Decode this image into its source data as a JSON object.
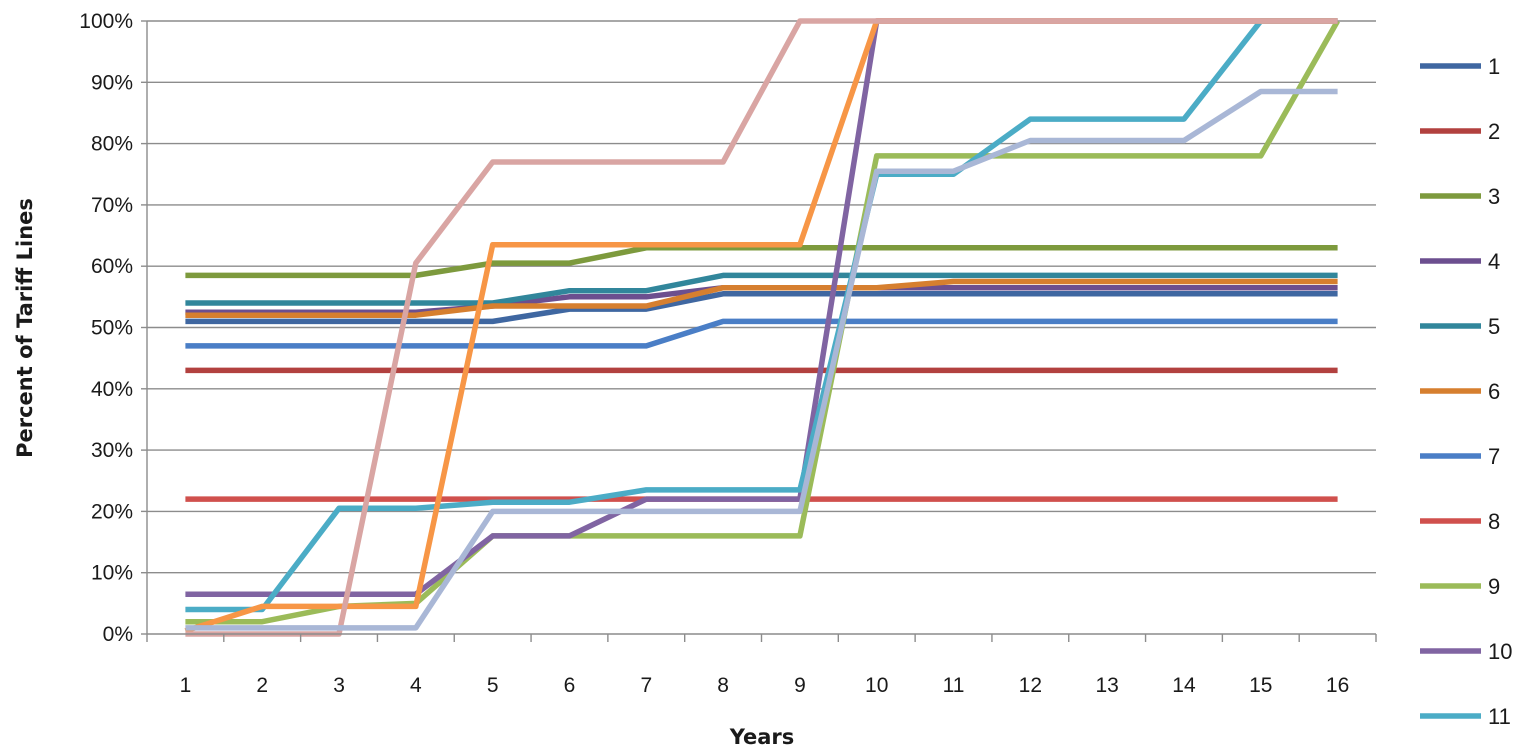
{
  "chart_data": {
    "type": "line",
    "title": "",
    "xlabel": "Years",
    "ylabel": "Percent of Tariff Lines",
    "x": [
      1,
      2,
      3,
      4,
      5,
      6,
      7,
      8,
      9,
      10,
      11,
      12,
      13,
      14,
      15,
      16
    ],
    "x_tick_labels": [
      "1",
      "2",
      "3",
      "4",
      "5",
      "6",
      "7",
      "8",
      "9",
      "10",
      "11",
      "12",
      "13",
      "14",
      "15",
      "16"
    ],
    "y_tick_labels": [
      "0%",
      "10%",
      "20%",
      "30%",
      "40%",
      "50%",
      "60%",
      "70%",
      "80%",
      "90%",
      "100%"
    ],
    "ylim": [
      0,
      100
    ],
    "y_unit": "%",
    "grid": "horizontal",
    "legend_position": "right",
    "series": [
      {
        "name": "1",
        "color": "#3f67a1",
        "values": [
          51,
          51,
          51,
          51,
          51,
          53,
          53,
          55.5,
          55.5,
          55.5,
          55.5,
          55.5,
          55.5,
          55.5,
          55.5,
          55.5
        ]
      },
      {
        "name": "2",
        "color": "#b2413f",
        "values": [
          43,
          43,
          43,
          43,
          43,
          43,
          43,
          43,
          43,
          43,
          43,
          43,
          43,
          43,
          43,
          43
        ]
      },
      {
        "name": "3",
        "color": "#7d9a3d",
        "values": [
          58.5,
          58.5,
          58.5,
          58.5,
          60.5,
          60.5,
          63,
          63,
          63,
          63,
          63,
          63,
          63,
          63,
          63,
          63
        ]
      },
      {
        "name": "4",
        "color": "#6c4f8f",
        "values": [
          52.5,
          52.5,
          52.5,
          52.5,
          53.5,
          55,
          55,
          56.5,
          56.5,
          56.5,
          56.5,
          56.5,
          56.5,
          56.5,
          56.5,
          56.5
        ]
      },
      {
        "name": "5",
        "color": "#31869b",
        "values": [
          54,
          54,
          54,
          54,
          54,
          56,
          56,
          58.5,
          58.5,
          58.5,
          58.5,
          58.5,
          58.5,
          58.5,
          58.5,
          58.5
        ]
      },
      {
        "name": "6",
        "color": "#d67f2f",
        "values": [
          52,
          52,
          52,
          52,
          53.5,
          53.5,
          53.5,
          56.5,
          56.5,
          56.5,
          57.5,
          57.5,
          57.5,
          57.5,
          57.5,
          57.5
        ]
      },
      {
        "name": "7",
        "color": "#4a7ec6",
        "values": [
          47,
          47,
          47,
          47,
          47,
          47,
          47,
          51,
          51,
          51,
          51,
          51,
          51,
          51,
          51,
          51
        ]
      },
      {
        "name": "8",
        "color": "#d0504d",
        "values": [
          22,
          22,
          22,
          22,
          22,
          22,
          22,
          22,
          22,
          22,
          22,
          22,
          22,
          22,
          22,
          22
        ]
      },
      {
        "name": "9",
        "color": "#9bbb59",
        "values": [
          2,
          2,
          4.5,
          5,
          16,
          16,
          16,
          16,
          16,
          78,
          78,
          78,
          78,
          78,
          78,
          100
        ]
      },
      {
        "name": "10",
        "color": "#8064a2",
        "values": [
          6.5,
          6.5,
          6.5,
          6.5,
          16,
          16,
          22,
          22,
          22,
          100,
          100,
          100,
          100,
          100,
          100,
          100
        ]
      },
      {
        "name": "11",
        "color": "#4bacc6",
        "values": [
          4,
          4,
          20.5,
          20.5,
          21.5,
          21.5,
          23.5,
          23.5,
          23.5,
          75,
          75,
          84,
          84,
          84,
          100,
          100
        ]
      },
      {
        "name": "",
        "color": "#f79646",
        "values": [
          0.5,
          4.5,
          4.5,
          4.5,
          63.5,
          63.5,
          63.5,
          63.5,
          63.5,
          100,
          100,
          100,
          100,
          100,
          100,
          100
        ]
      },
      {
        "name": "",
        "color": "#d9a5a3",
        "values": [
          0,
          0,
          0,
          60.5,
          77,
          77,
          77,
          77,
          100,
          100,
          100,
          100,
          100,
          100,
          100,
          100
        ]
      },
      {
        "name": "",
        "color": "#a9b7d6",
        "values": [
          1,
          1,
          1,
          1,
          20,
          20,
          20,
          20,
          20,
          75.5,
          75.5,
          80.5,
          80.5,
          80.5,
          88.5,
          88.5
        ]
      }
    ]
  }
}
